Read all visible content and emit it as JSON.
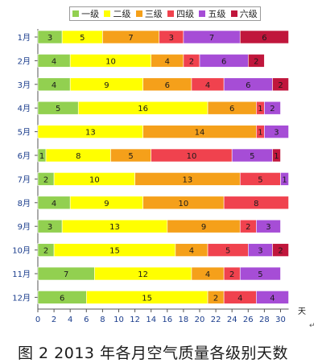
{
  "figure_caption": "图 2   2013 年各月空气质量各级别天数",
  "page_mark": "↵",
  "chart_data": {
    "type": "bar",
    "orientation": "horizontal",
    "stacked": true,
    "categories": [
      "1月",
      "2月",
      "3月",
      "4月",
      "5月",
      "6月",
      "7月",
      "8月",
      "9月",
      "10月",
      "11月",
      "12月"
    ],
    "series": [
      {
        "name": "一级",
        "color": "#92d050",
        "values": [
          3,
          4,
          4,
          5,
          0,
          1,
          2,
          4,
          3,
          2,
          7,
          6
        ]
      },
      {
        "name": "二级",
        "color": "#ffff00",
        "values": [
          5,
          10,
          9,
          16,
          13,
          8,
          10,
          9,
          13,
          15,
          12,
          15
        ]
      },
      {
        "name": "三级",
        "color": "#f5a01a",
        "values": [
          7,
          4,
          6,
          6,
          14,
          5,
          13,
          10,
          9,
          4,
          4,
          2
        ]
      },
      {
        "name": "四级",
        "color": "#f0424e",
        "values": [
          3,
          2,
          4,
          1,
          1,
          10,
          5,
          8,
          2,
          5,
          2,
          4
        ]
      },
      {
        "name": "五级",
        "color": "#a64dd6",
        "values": [
          7,
          6,
          6,
          2,
          3,
          5,
          1,
          0,
          3,
          3,
          5,
          4
        ]
      },
      {
        "name": "六级",
        "color": "#c0163c",
        "values": [
          6,
          2,
          2,
          0,
          0,
          1,
          0,
          0,
          0,
          2,
          0,
          0
        ]
      }
    ],
    "xlabel": "天",
    "xlim": [
      0,
      31
    ],
    "xticks": [
      0,
      2,
      4,
      6,
      8,
      10,
      12,
      14,
      16,
      18,
      20,
      22,
      24,
      26,
      28,
      30
    ],
    "grid": false,
    "legend": "top"
  }
}
